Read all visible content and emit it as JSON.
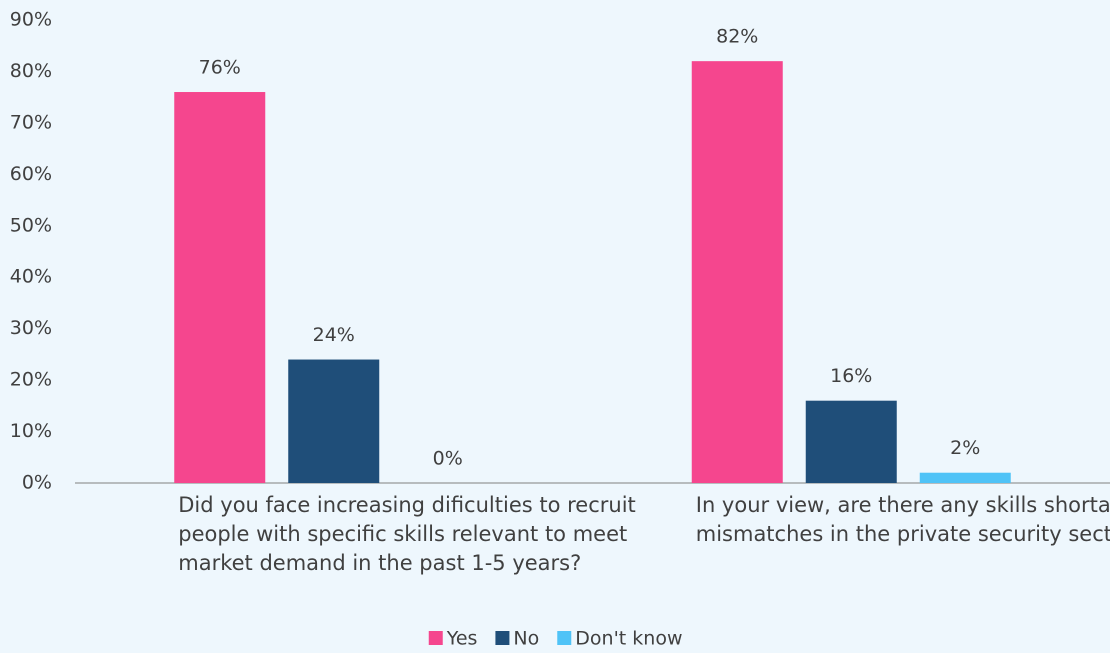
{
  "chart_data": {
    "type": "bar",
    "categories": [
      "Did you face increasing dificulties to recruit people with specific skills relevant to meet market demand in the past 1-5 years?",
      "In your view, are there any skills shortages or mismatches in the private security sector?"
    ],
    "series": [
      {
        "name": "Yes",
        "color": "#f5468e",
        "values": [
          76,
          82
        ],
        "value_labels": [
          "76%",
          "82%"
        ]
      },
      {
        "name": "No",
        "color": "#1f4e79",
        "values": [
          24,
          16
        ],
        "value_labels": [
          "24%",
          "16%"
        ]
      },
      {
        "name": "Don't know",
        "color": "#4fc3f7",
        "values": [
          0,
          2
        ],
        "value_labels": [
          "0%",
          "2%"
        ]
      }
    ],
    "ylim": [
      0,
      90
    ],
    "yticks": [
      {
        "value": 0,
        "label": "0%"
      },
      {
        "value": 10,
        "label": "10%"
      },
      {
        "value": 20,
        "label": "20%"
      },
      {
        "value": 30,
        "label": "30%"
      },
      {
        "value": 40,
        "label": "40%"
      },
      {
        "value": 50,
        "label": "50%"
      },
      {
        "value": 60,
        "label": "60%"
      },
      {
        "value": 70,
        "label": "70%"
      },
      {
        "value": 80,
        "label": "80%"
      },
      {
        "value": 90,
        "label": "90%"
      }
    ],
    "grid": false,
    "legend": "bottom"
  }
}
